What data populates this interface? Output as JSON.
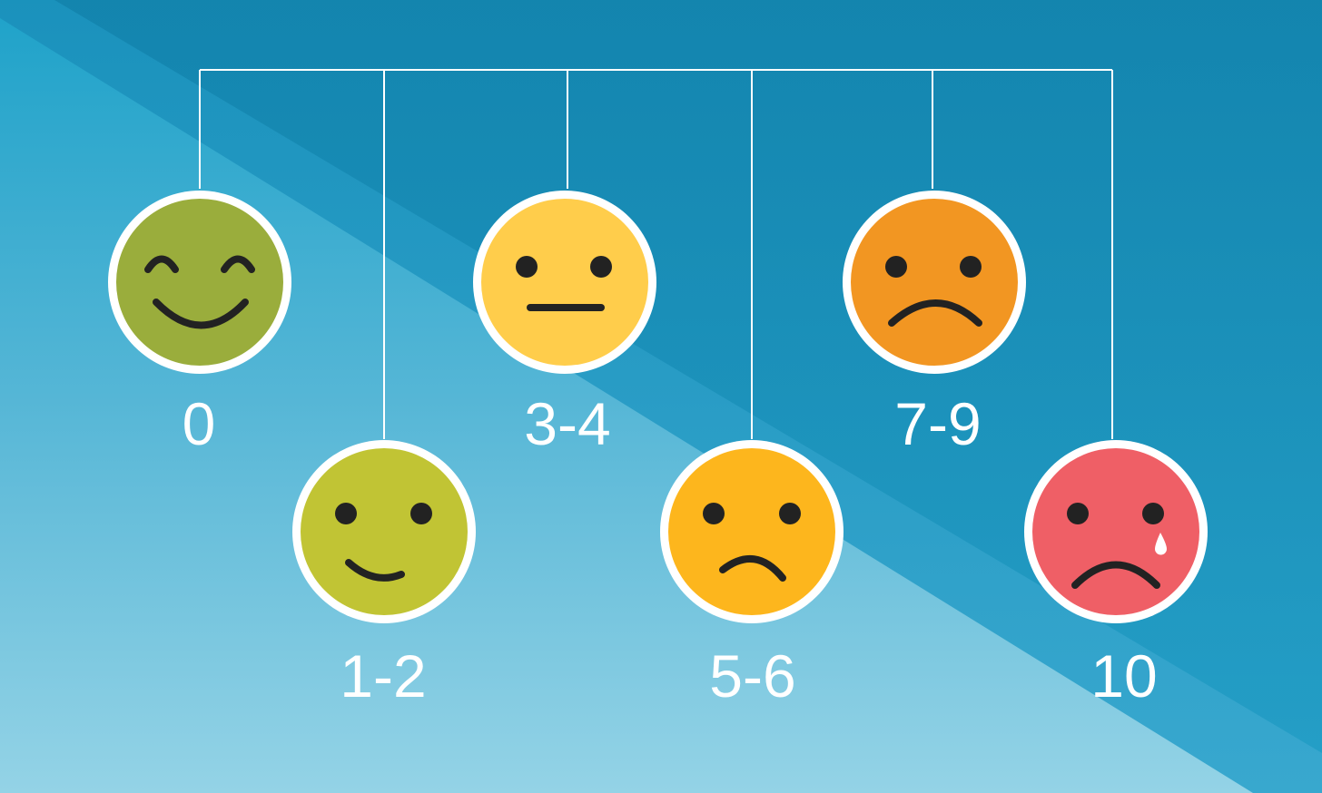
{
  "pain_scale": {
    "levels": [
      {
        "label": "0",
        "face": "happy-face-icon",
        "color": "#9aad3c"
      },
      {
        "label": "1-2",
        "face": "smile-face-icon",
        "color": "#c1c434"
      },
      {
        "label": "3-4",
        "face": "neutral-face-icon",
        "color": "#ffcd4b"
      },
      {
        "label": "5-6",
        "face": "frown-face-icon",
        "color": "#fdb61d"
      },
      {
        "label": "7-9",
        "face": "sad-face-icon",
        "color": "#f29622"
      },
      {
        "label": "10",
        "face": "crying-face-icon",
        "color": "#ef5f66"
      }
    ]
  },
  "colors": {
    "background_top": "#0d7fa7",
    "background_band": "#1da3c9",
    "background_bottom": "#8ad0e4",
    "line": "#ffffff",
    "feature": "#222222"
  }
}
